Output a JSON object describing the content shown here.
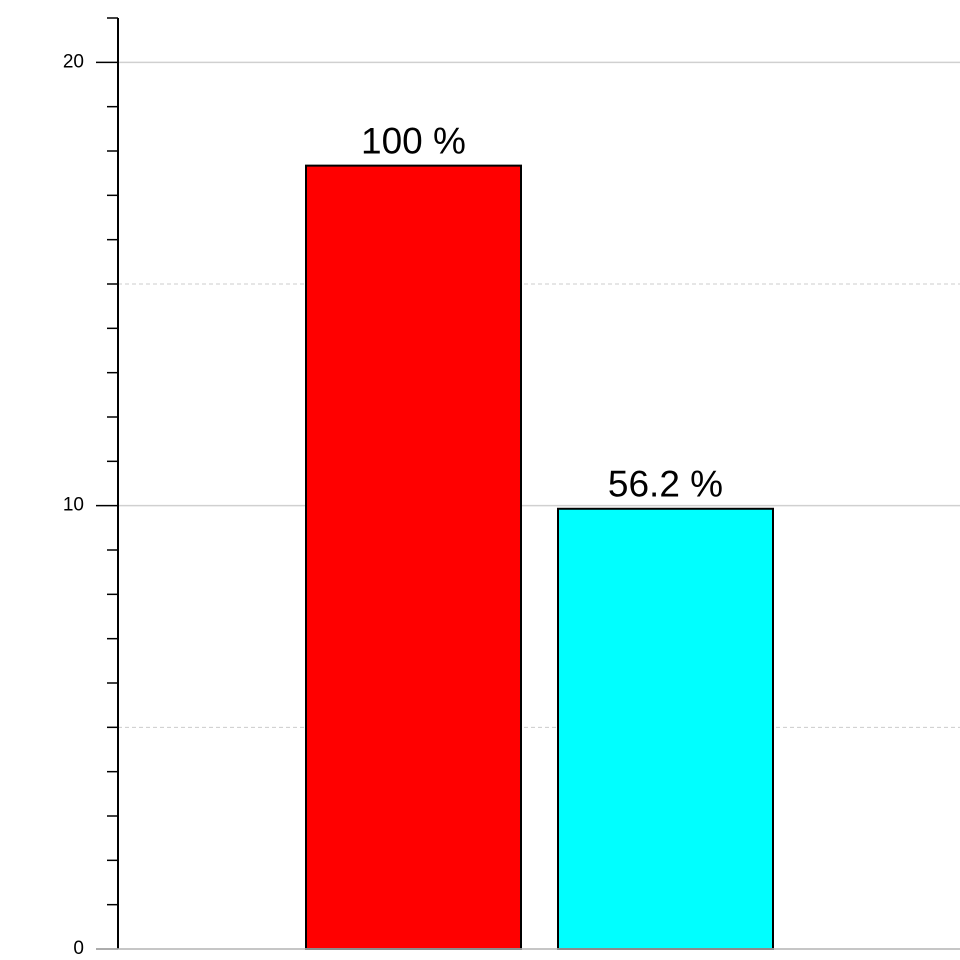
{
  "chart_data": {
    "type": "bar",
    "categories": [
      null,
      null
    ],
    "values": [
      17.67,
      9.93
    ],
    "colors": [
      "#ff0000",
      "#00ffff"
    ],
    "annotations": [
      "100 %",
      "56.2 %"
    ],
    "ylim": [
      0,
      21
    ],
    "yticks": [
      0,
      10,
      20
    ],
    "minor_yticks": [
      1,
      2,
      3,
      4,
      5,
      6,
      7,
      8,
      9,
      11,
      12,
      13,
      14,
      15,
      16,
      17,
      18,
      19,
      21
    ],
    "dashed_grid": [
      5,
      15
    ],
    "grid": true
  }
}
